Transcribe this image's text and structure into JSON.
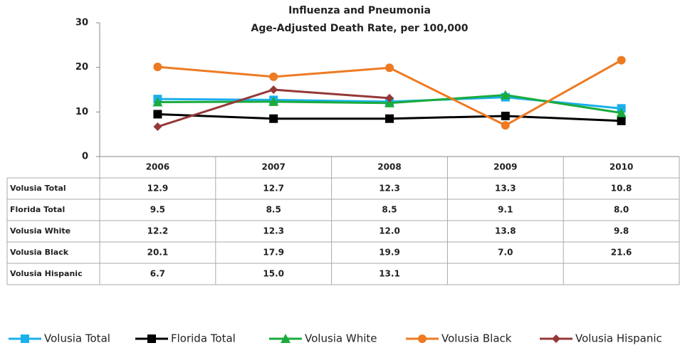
{
  "chart_data": {
    "type": "line",
    "title": "Influenza and Pneumonia",
    "subtitle": "Age-Adjusted Death Rate, per 100,000",
    "categories": [
      "2006",
      "2007",
      "2008",
      "2009",
      "2010"
    ],
    "series": [
      {
        "name": "Volusia Total",
        "color": "#1ab0ec",
        "marker": "square",
        "values": [
          12.9,
          12.7,
          12.3,
          13.3,
          10.8
        ],
        "value_labels": [
          "12.9",
          "12.7",
          "12.3",
          "13.3",
          "10.8"
        ]
      },
      {
        "name": "Florida Total",
        "color": "#000000",
        "marker": "square",
        "values": [
          9.5,
          8.5,
          8.5,
          9.1,
          8
        ],
        "value_labels": [
          "9.5",
          "8.5",
          "8.5",
          "9.1",
          "8.0"
        ]
      },
      {
        "name": "Volusia White",
        "color": "#1aab3c",
        "marker": "triangle",
        "values": [
          12.2,
          12.3,
          12,
          13.8,
          9.8
        ],
        "value_labels": [
          "12.2",
          "12.3",
          "12.0",
          "13.8",
          "9.8"
        ]
      },
      {
        "name": "Volusia Black",
        "color": "#ee7a22",
        "marker": "circle",
        "values": [
          20.1,
          17.9,
          19.9,
          7,
          21.6
        ],
        "value_labels": [
          "20.1",
          "17.9",
          "19.9",
          "7.0",
          "21.6"
        ]
      },
      {
        "name": "Volusia Hispanic",
        "color": "#953838",
        "marker": "diamond",
        "values": [
          6.7,
          15,
          13.1,
          null,
          null
        ],
        "value_labels": [
          "6.7",
          "15.0",
          "13.1",
          null,
          null
        ]
      }
    ],
    "ylim": [
      0,
      30
    ],
    "yticks": [
      0,
      10,
      20,
      30
    ],
    "grid": false,
    "legend": "bottom"
  }
}
